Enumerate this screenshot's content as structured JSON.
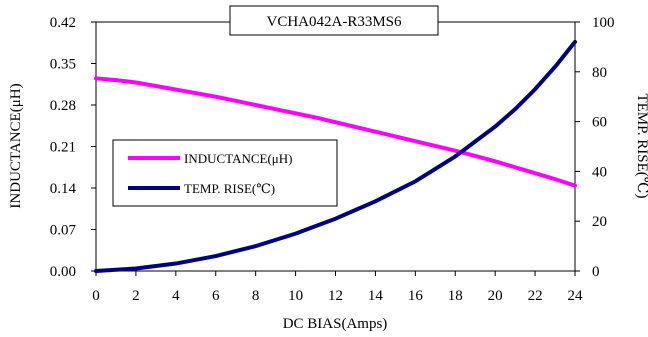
{
  "chart_data": {
    "type": "line",
    "title": "VCHA042A-R33MS6",
    "xlabel": "DC BIAS(Amps)",
    "ylabel_left": "INDUCTANCE(μH)",
    "ylabel_right": "TEMP. RISE(℃)",
    "x_ticks": [
      0,
      2,
      4,
      6,
      8,
      10,
      12,
      14,
      16,
      18,
      20,
      22,
      24
    ],
    "y_left_ticks": [
      "0.00",
      "0.07",
      "0.14",
      "0.21",
      "0.28",
      "0.35",
      "0.42"
    ],
    "y_right_ticks": [
      "0",
      "20",
      "40",
      "60",
      "80",
      "100"
    ],
    "xlim": [
      0,
      24
    ],
    "ylim_left": [
      0,
      0.42
    ],
    "ylim_right": [
      0,
      100
    ],
    "grid": false,
    "legend_position": "center-left",
    "series": [
      {
        "name": "INDUCTANCE(μH)",
        "axis": "left",
        "color": "#ff00ff",
        "x": [
          0,
          1,
          2,
          3,
          4,
          5,
          6,
          7,
          8,
          9,
          10,
          11,
          12,
          13,
          14,
          15,
          16,
          17,
          18,
          19,
          20,
          21,
          22,
          23,
          24
        ],
        "y": [
          0.325,
          0.322,
          0.318,
          0.312,
          0.306,
          0.3,
          0.294,
          0.287,
          0.28,
          0.273,
          0.266,
          0.259,
          0.251,
          0.243,
          0.235,
          0.227,
          0.219,
          0.211,
          0.203,
          0.194,
          0.185,
          0.175,
          0.165,
          0.155,
          0.144
        ]
      },
      {
        "name": "TEMP. RISE(℃)",
        "axis": "right",
        "color": "#000080",
        "x": [
          0,
          1,
          2,
          3,
          4,
          5,
          6,
          7,
          8,
          9,
          10,
          11,
          12,
          13,
          14,
          15,
          16,
          17,
          18,
          19,
          20,
          21,
          22,
          23,
          24
        ],
        "y": [
          0,
          0.5,
          1,
          2,
          3,
          4.5,
          6,
          8,
          10,
          12.5,
          15,
          18,
          21,
          24.5,
          28,
          32,
          36,
          41,
          46,
          52,
          58,
          65,
          73,
          82,
          92
        ]
      }
    ]
  }
}
